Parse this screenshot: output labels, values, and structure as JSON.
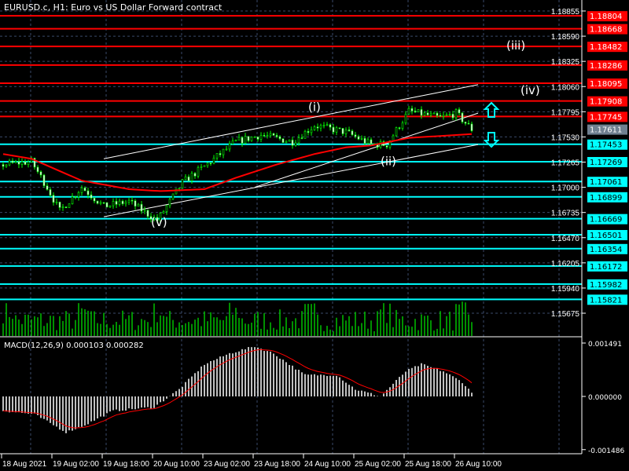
{
  "header": {
    "title": "EURUSD.c, H1:  Euro vs US Dollar Forward contract"
  },
  "macd_label": "MACD(12,26,9) 0.000103 0.000282",
  "colors": {
    "bg": "#000000",
    "resistance": "#ff0000",
    "support": "#00ffff",
    "current": "#708090",
    "candle": "#00ff00",
    "ma": "#ff0000",
    "grid": "#3a4a6a"
  },
  "chart_data": {
    "type": "line",
    "title": "EURUSD.c, H1",
    "price_axis_ticks": [
      "1.18855",
      "1.18590",
      "1.18325",
      "1.18060",
      "1.17795",
      "1.17530",
      "1.17265",
      "1.17000",
      "1.16735",
      "1.16470",
      "1.16205",
      "1.15940",
      "1.15675"
    ],
    "ylim": [
      1.155,
      1.189
    ],
    "time_ticks": [
      "18 Aug 2021",
      "19 Aug 02:00",
      "19 Aug 18:00",
      "20 Aug 10:00",
      "23 Aug 02:00",
      "23 Aug 18:00",
      "24 Aug 10:00",
      "25 Aug 02:00",
      "25 Aug 18:00",
      "26 Aug 10:00"
    ],
    "bars_per_tick": 16,
    "close_keypoints": [
      [
        0,
        1.1724
      ],
      [
        9,
        1.1727
      ],
      [
        14,
        1.17
      ],
      [
        18,
        1.1675
      ],
      [
        25,
        1.17
      ],
      [
        32,
        1.168
      ],
      [
        40,
        1.1685
      ],
      [
        49,
        1.1665
      ],
      [
        57,
        1.1705
      ],
      [
        64,
        1.1722
      ],
      [
        74,
        1.1748
      ],
      [
        82,
        1.1755
      ],
      [
        92,
        1.1748
      ],
      [
        99,
        1.1765
      ],
      [
        109,
        1.1758
      ],
      [
        117,
        1.1745
      ],
      [
        122,
        1.1745
      ],
      [
        129,
        1.178
      ],
      [
        139,
        1.1773
      ],
      [
        144,
        1.1778
      ],
      [
        149,
        1.1761
      ]
    ],
    "ma_keypoints": [
      [
        0,
        1.1735
      ],
      [
        9,
        1.173
      ],
      [
        25,
        1.1707
      ],
      [
        40,
        1.1698
      ],
      [
        50,
        1.1696
      ],
      [
        64,
        1.1698
      ],
      [
        74,
        1.171
      ],
      [
        87,
        1.1724
      ],
      [
        99,
        1.1735
      ],
      [
        109,
        1.1742
      ],
      [
        117,
        1.1744
      ],
      [
        129,
        1.1752
      ],
      [
        139,
        1.1754
      ],
      [
        149,
        1.1756
      ]
    ],
    "resistance_levels": [
      "1.18804",
      "1.18668",
      "1.18482",
      "1.18286",
      "1.18095",
      "1.17908",
      "1.17745"
    ],
    "current_price": "1.17611",
    "support_levels": [
      "1.17453",
      "1.17269",
      "1.17061",
      "1.16899",
      "1.16669",
      "1.16501",
      "1.16354",
      "1.16172",
      "1.15982",
      "1.15821"
    ],
    "wave_labels": [
      {
        "text": "(v)",
        "bar": 49,
        "price": 1.1659
      },
      {
        "text": "(i)",
        "bar": 99,
        "price": 1.178
      },
      {
        "text": "(ii)",
        "bar": 122,
        "price": 1.1723
      },
      {
        "text": "(iii)",
        "bar": 162,
        "price": 1.1845
      },
      {
        "text": "(iv)",
        "bar": 174,
        "price": 1.1798
      }
    ],
    "channel": {
      "upper": [
        [
          32,
          1.173
        ],
        [
          151,
          1.1808
        ]
      ],
      "middle": [
        [
          80,
          1.17
        ],
        [
          151,
          1.1778
        ]
      ],
      "lower": [
        [
          32,
          1.1669
        ],
        [
          151,
          1.1745
        ]
      ]
    },
    "macd": {
      "label": "MACD(12,26,9)",
      "main": 0.000103,
      "signal": 0.000282,
      "ylim": [
        -0.001486,
        0.001491
      ],
      "ticks": [
        "0.001491",
        "0.000000",
        "-0.001486"
      ],
      "hist_keypoints": [
        [
          0,
          -0.0004
        ],
        [
          10,
          -0.0005
        ],
        [
          20,
          -0.001
        ],
        [
          26,
          -0.0008
        ],
        [
          35,
          -0.0004
        ],
        [
          48,
          -0.0003
        ],
        [
          56,
          0.0002
        ],
        [
          64,
          0.0009
        ],
        [
          72,
          0.0012
        ],
        [
          80,
          0.0014
        ],
        [
          86,
          0.0012
        ],
        [
          96,
          0.0006
        ],
        [
          106,
          0.0006
        ],
        [
          112,
          0.0002
        ],
        [
          120,
          0.0
        ],
        [
          128,
          0.0007
        ],
        [
          133,
          0.0009
        ],
        [
          140,
          0.0007
        ],
        [
          146,
          0.0004
        ],
        [
          149,
          0.0001
        ]
      ]
    }
  }
}
